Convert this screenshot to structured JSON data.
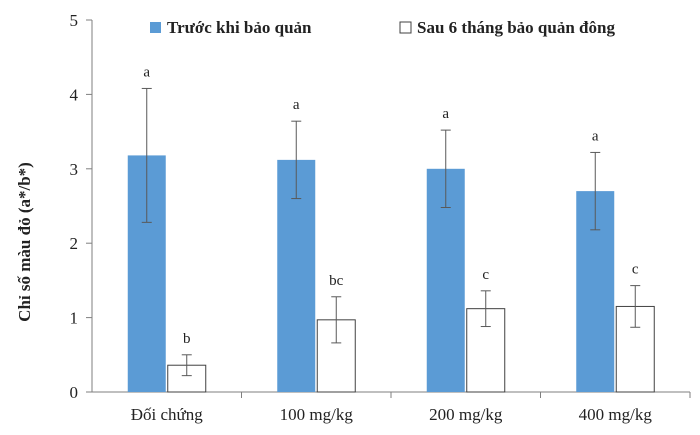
{
  "chart_data": {
    "type": "bar",
    "ylabel": "Chỉ số màu đỏ (a*/b*)",
    "ylim": [
      0,
      5
    ],
    "yticks": [
      "0",
      "1",
      "2",
      "3",
      "4",
      "5"
    ],
    "categories": [
      "Đối chứng",
      "100 mg/kg",
      "200 mg/kg",
      "400 mg/kg"
    ],
    "legend_position": "top",
    "series": [
      {
        "name": "Trước khi bảo quản",
        "color": "#5b9bd5",
        "values": [
          3.18,
          3.12,
          3.0,
          2.7
        ],
        "errors": [
          0.9,
          0.52,
          0.52,
          0.52
        ],
        "letters": [
          "a",
          "a",
          "a",
          "a"
        ]
      },
      {
        "name": "Sau 6 tháng bảo quản đông",
        "color": "#ffffff",
        "values": [
          0.36,
          0.97,
          1.12,
          1.15
        ],
        "errors": [
          0.14,
          0.31,
          0.24,
          0.28
        ],
        "letters": [
          "b",
          "bc",
          "c",
          "c"
        ]
      }
    ]
  }
}
